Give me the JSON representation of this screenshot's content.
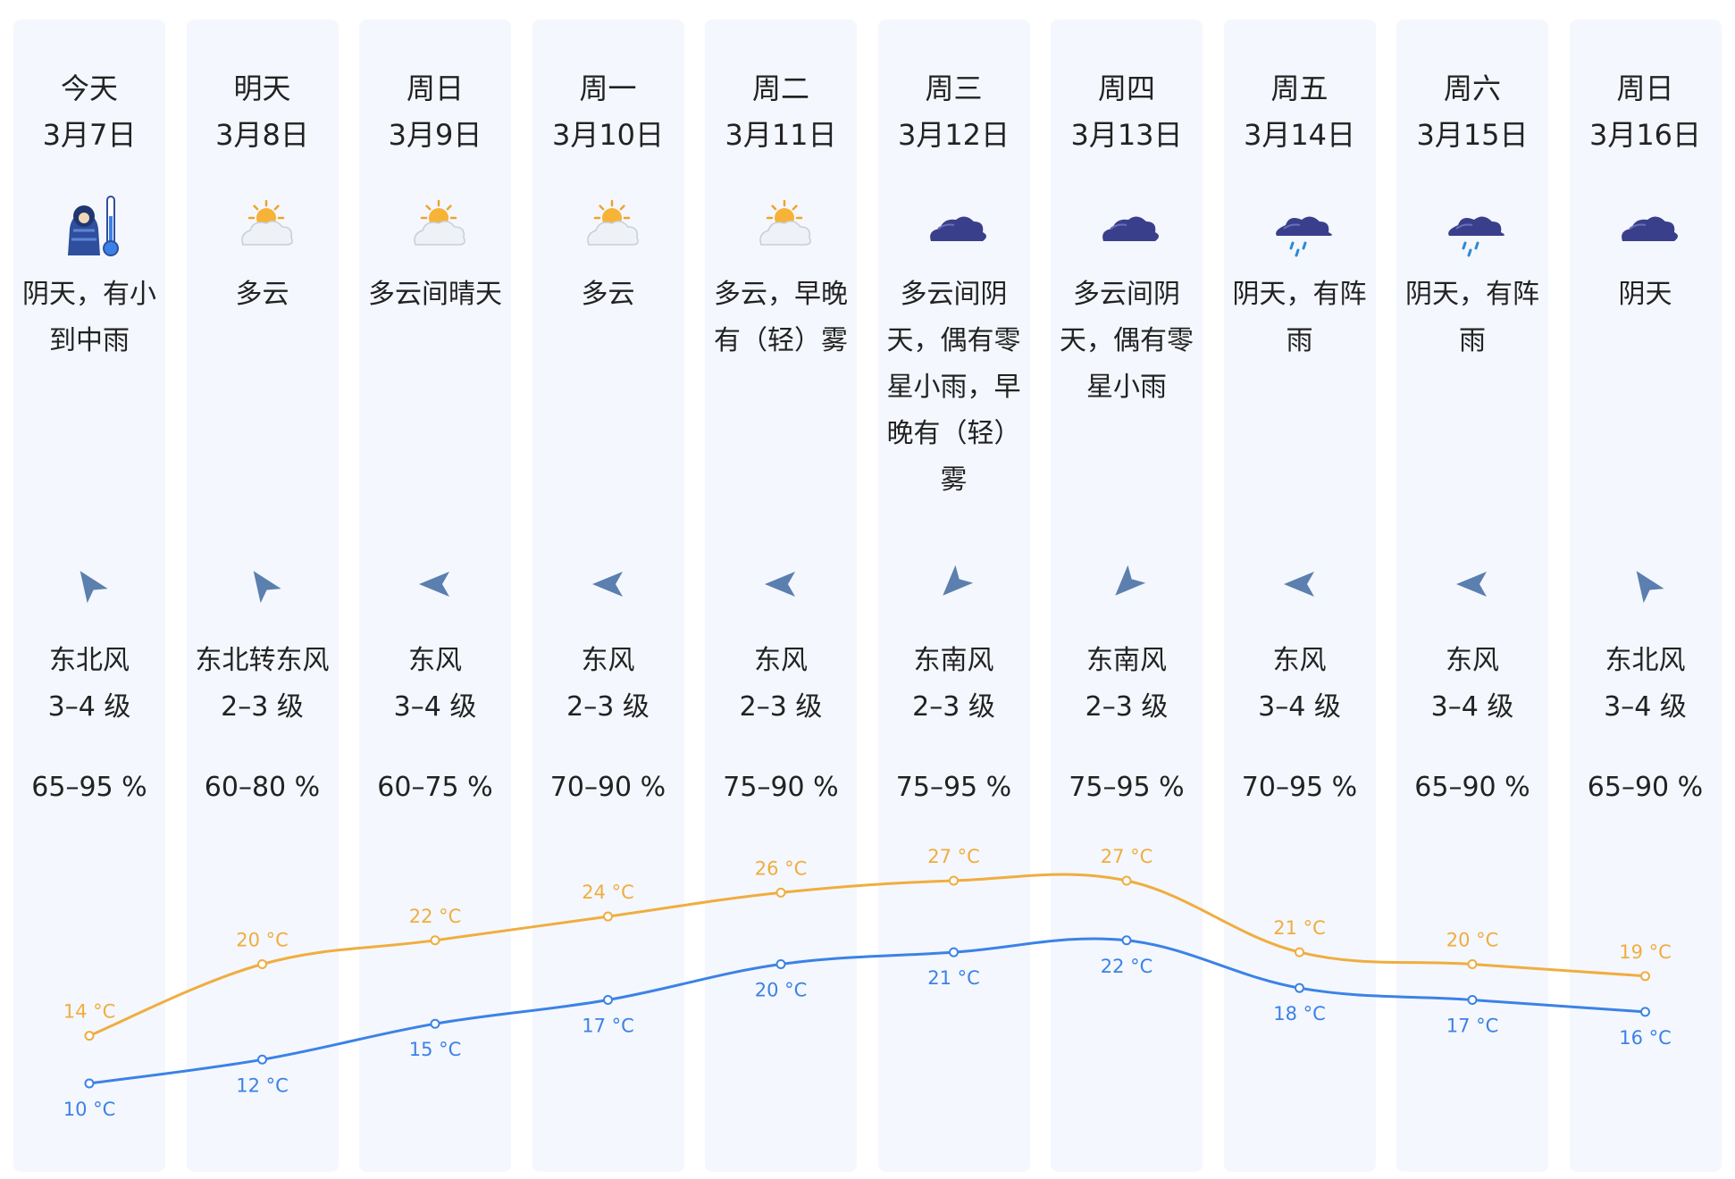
{
  "colors": {
    "high": "#f0ad3e",
    "low": "#3b82e6",
    "column_bg": "#f4f7fd",
    "wind_arrow": "#5b7fae",
    "cloud": "#3a3f8c",
    "rain": "#2d8ad6"
  },
  "days": [
    {
      "weekday": "今天",
      "date": "3月7日",
      "icon": "cold-person-icon",
      "desc": "阴天，有小到中雨",
      "wind_icon": "wind-arrow-icon",
      "wind_dir": "东北风",
      "wind_level": "3–4 级",
      "humidity": "65–95 %"
    },
    {
      "weekday": "明天",
      "date": "3月8日",
      "icon": "partly-cloudy-icon",
      "desc": "多云",
      "wind_icon": "wind-arrow-icon",
      "wind_dir": "东北转东风",
      "wind_level": "2–3 级",
      "humidity": "60–80 %"
    },
    {
      "weekday": "周日",
      "date": "3月9日",
      "icon": "partly-cloudy-icon",
      "desc": "多云间晴天",
      "wind_icon": "wind-arrow-icon",
      "wind_dir": "东风",
      "wind_level": "3–4 级",
      "humidity": "60–75 %"
    },
    {
      "weekday": "周一",
      "date": "3月10日",
      "icon": "partly-cloudy-icon",
      "desc": "多云",
      "wind_icon": "wind-arrow-icon",
      "wind_dir": "东风",
      "wind_level": "2–3 级",
      "humidity": "70–90 %"
    },
    {
      "weekday": "周二",
      "date": "3月11日",
      "icon": "partly-cloudy-icon",
      "desc": "多云，早晚有（轻）雾",
      "wind_icon": "wind-arrow-icon",
      "wind_dir": "东风",
      "wind_level": "2–3 级",
      "humidity": "75–90 %"
    },
    {
      "weekday": "周三",
      "date": "3月12日",
      "icon": "cloudy-icon",
      "desc": "多云间阴天，偶有零星小雨，早晚有（轻）雾",
      "wind_icon": "wind-arrow-icon",
      "wind_dir": "东南风",
      "wind_level": "2–3 级",
      "humidity": "75–95 %"
    },
    {
      "weekday": "周四",
      "date": "3月13日",
      "icon": "cloudy-icon",
      "desc": "多云间阴天，偶有零星小雨",
      "wind_icon": "wind-arrow-icon",
      "wind_dir": "东南风",
      "wind_level": "2–3 级",
      "humidity": "75–95 %"
    },
    {
      "weekday": "周五",
      "date": "3月14日",
      "icon": "rain-cloud-icon",
      "desc": "阴天，有阵雨",
      "wind_icon": "wind-arrow-icon",
      "wind_dir": "东风",
      "wind_level": "3–4 级",
      "humidity": "70–95 %"
    },
    {
      "weekday": "周六",
      "date": "3月15日",
      "icon": "rain-cloud-icon",
      "desc": "阴天，有阵雨",
      "wind_icon": "wind-arrow-icon",
      "wind_dir": "东风",
      "wind_level": "3–4 级",
      "humidity": "65–90 %"
    },
    {
      "weekday": "周日",
      "date": "3月16日",
      "icon": "cloudy-icon",
      "desc": "阴天",
      "wind_icon": "wind-arrow-icon",
      "wind_dir": "东北风",
      "wind_level": "3–4 级",
      "humidity": "65–90 %"
    }
  ],
  "chart_data": {
    "type": "line",
    "categories": [
      "3月7日",
      "3月8日",
      "3月9日",
      "3月10日",
      "3月11日",
      "3月12日",
      "3月13日",
      "3月14日",
      "3月15日",
      "3月16日"
    ],
    "series": [
      {
        "values": [
          14,
          20,
          22,
          24,
          26,
          27,
          27,
          21,
          20,
          19
        ],
        "labels": [
          "14 °C",
          "20 °C",
          "22 °C",
          "24 °C",
          "26 °C",
          "27 °C",
          "27 °C",
          "21 °C",
          "20 °C",
          "19 °C"
        ]
      },
      {
        "values": [
          10,
          12,
          15,
          17,
          20,
          21,
          22,
          18,
          17,
          16
        ],
        "labels": [
          "10 °C",
          "12 °C",
          "15 °C",
          "17 °C",
          "20 °C",
          "21 °C",
          "22 °C",
          "18 °C",
          "17 °C",
          "16 °C"
        ]
      }
    ],
    "unit": "°C",
    "ylim": [
      10,
      27
    ],
    "grid": false,
    "legend": "none"
  }
}
